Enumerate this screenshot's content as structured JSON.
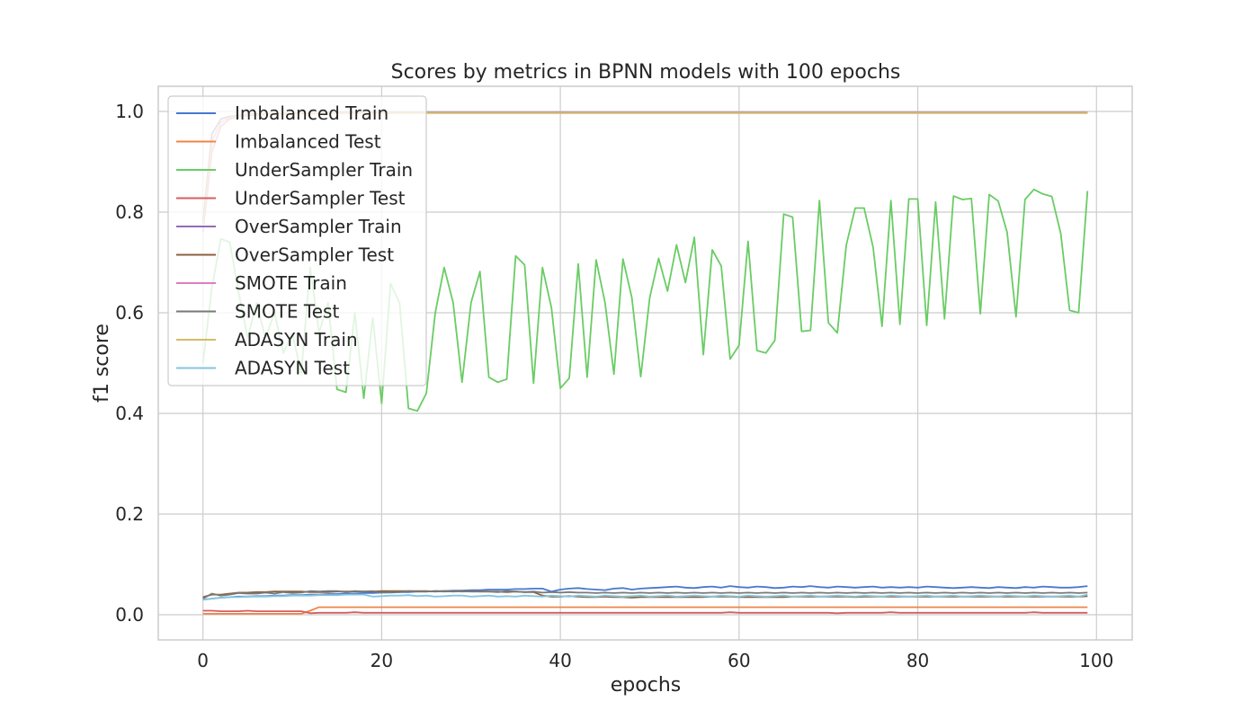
{
  "chart_data": {
    "type": "line",
    "title": "Scores by metrics in BPNN models with 100 epochs",
    "xlabel": "epochs",
    "ylabel": "f1 score",
    "xlim": [
      -5,
      104
    ],
    "ylim": [
      -0.05,
      1.05
    ],
    "x_ticks": [
      0,
      20,
      40,
      60,
      80,
      100
    ],
    "y_ticks": [
      0.0,
      0.2,
      0.4,
      0.6,
      0.8,
      1.0
    ],
    "x_tick_labels": [
      "0",
      "20",
      "40",
      "60",
      "80",
      "100"
    ],
    "y_tick_labels": [
      "0.0",
      "0.2",
      "0.4",
      "0.6",
      "0.8",
      "1.0"
    ],
    "grid": true,
    "legend_position": "upper-left",
    "series": [
      {
        "name": "Imbalanced Train",
        "color": "#4878d0",
        "values": [
          0.03,
          0.032,
          0.034,
          0.035,
          0.036,
          0.036,
          0.037,
          0.037,
          0.038,
          0.038,
          0.039,
          0.039,
          0.04,
          0.04,
          0.041,
          0.041,
          0.042,
          0.042,
          0.043,
          0.043,
          0.044,
          0.044,
          0.045,
          0.045,
          0.046,
          0.046,
          0.047,
          0.047,
          0.048,
          0.048,
          0.049,
          0.049,
          0.05,
          0.05,
          0.05,
          0.051,
          0.051,
          0.052,
          0.052,
          0.046,
          0.05,
          0.052,
          0.053,
          0.051,
          0.05,
          0.049,
          0.052,
          0.053,
          0.05,
          0.052,
          0.053,
          0.054,
          0.055,
          0.056,
          0.054,
          0.053,
          0.055,
          0.056,
          0.054,
          0.057,
          0.055,
          0.054,
          0.056,
          0.055,
          0.053,
          0.054,
          0.056,
          0.055,
          0.057,
          0.055,
          0.054,
          0.056,
          0.055,
          0.054,
          0.055,
          0.056,
          0.054,
          0.055,
          0.054,
          0.055,
          0.054,
          0.056,
          0.055,
          0.054,
          0.053,
          0.054,
          0.055,
          0.054,
          0.053,
          0.055,
          0.054,
          0.053,
          0.055,
          0.054,
          0.056,
          0.055,
          0.054,
          0.054,
          0.055,
          0.057
        ]
      },
      {
        "name": "Imbalanced Test",
        "color": "#ee854a",
        "values": [
          0.002,
          0.002,
          0.002,
          0.002,
          0.002,
          0.002,
          0.002,
          0.002,
          0.002,
          0.002,
          0.002,
          0.002,
          0.008,
          0.015,
          0.015,
          0.015,
          0.015,
          0.015,
          0.015,
          0.015,
          0.015,
          0.015,
          0.015,
          0.015,
          0.015,
          0.015,
          0.015,
          0.015,
          0.015,
          0.015,
          0.015,
          0.015,
          0.015,
          0.015,
          0.015,
          0.015,
          0.015,
          0.015,
          0.015,
          0.015,
          0.015,
          0.015,
          0.015,
          0.015,
          0.015,
          0.015,
          0.015,
          0.015,
          0.015,
          0.015,
          0.015,
          0.015,
          0.015,
          0.015,
          0.015,
          0.015,
          0.015,
          0.015,
          0.015,
          0.015,
          0.015,
          0.015,
          0.015,
          0.015,
          0.015,
          0.015,
          0.015,
          0.015,
          0.015,
          0.015,
          0.015,
          0.015,
          0.015,
          0.015,
          0.015,
          0.015,
          0.015,
          0.015,
          0.015,
          0.015,
          0.015,
          0.015,
          0.015,
          0.015,
          0.015,
          0.015,
          0.015,
          0.015,
          0.015,
          0.015,
          0.015,
          0.015,
          0.015,
          0.015,
          0.015,
          0.015,
          0.015,
          0.015,
          0.015,
          0.015
        ]
      },
      {
        "name": "UnderSampler Train",
        "color": "#6acc64",
        "values": [
          0.5,
          0.65,
          0.747,
          0.74,
          0.64,
          0.55,
          0.62,
          0.55,
          0.6,
          0.52,
          0.56,
          0.48,
          0.69,
          0.56,
          0.62,
          0.448,
          0.442,
          0.6,
          0.43,
          0.59,
          0.42,
          0.658,
          0.62,
          0.41,
          0.405,
          0.44,
          0.6,
          0.69,
          0.62,
          0.462,
          0.62,
          0.682,
          0.472,
          0.462,
          0.468,
          0.713,
          0.695,
          0.46,
          0.69,
          0.61,
          0.45,
          0.47,
          0.697,
          0.472,
          0.705,
          0.62,
          0.478,
          0.707,
          0.63,
          0.473,
          0.63,
          0.708,
          0.643,
          0.735,
          0.66,
          0.75,
          0.517,
          0.725,
          0.693,
          0.508,
          0.535,
          0.742,
          0.525,
          0.52,
          0.545,
          0.796,
          0.79,
          0.563,
          0.565,
          0.823,
          0.58,
          0.56,
          0.735,
          0.808,
          0.808,
          0.73,
          0.573,
          0.823,
          0.577,
          0.826,
          0.826,
          0.575,
          0.82,
          0.588,
          0.832,
          0.825,
          0.827,
          0.598,
          0.835,
          0.822,
          0.76,
          0.592,
          0.825,
          0.845,
          0.836,
          0.831,
          0.758,
          0.605,
          0.6,
          0.842
        ]
      },
      {
        "name": "UnderSampler Test",
        "color": "#d65f5f",
        "values": [
          0.008,
          0.008,
          0.007,
          0.007,
          0.007,
          0.008,
          0.007,
          0.007,
          0.007,
          0.007,
          0.007,
          0.007,
          0.003,
          0.004,
          0.004,
          0.004,
          0.004,
          0.005,
          0.004,
          0.004,
          0.004,
          0.004,
          0.004,
          0.004,
          0.004,
          0.004,
          0.004,
          0.004,
          0.004,
          0.004,
          0.004,
          0.004,
          0.004,
          0.004,
          0.004,
          0.004,
          0.004,
          0.004,
          0.004,
          0.004,
          0.004,
          0.004,
          0.004,
          0.004,
          0.004,
          0.004,
          0.004,
          0.004,
          0.004,
          0.004,
          0.004,
          0.004,
          0.004,
          0.004,
          0.004,
          0.004,
          0.004,
          0.004,
          0.004,
          0.005,
          0.004,
          0.004,
          0.004,
          0.004,
          0.004,
          0.004,
          0.004,
          0.004,
          0.004,
          0.004,
          0.004,
          0.003,
          0.004,
          0.004,
          0.004,
          0.004,
          0.004,
          0.005,
          0.004,
          0.004,
          0.004,
          0.004,
          0.004,
          0.004,
          0.004,
          0.004,
          0.004,
          0.004,
          0.004,
          0.004,
          0.004,
          0.004,
          0.004,
          0.005,
          0.004,
          0.004,
          0.004,
          0.004,
          0.004,
          0.004
        ]
      },
      {
        "name": "OverSampler Train",
        "color": "#956cb4",
        "values": [
          0.78,
          0.955,
          0.985,
          0.99,
          0.992,
          0.994,
          0.995,
          0.995,
          0.996,
          0.996,
          0.997,
          0.997,
          0.997,
          0.997,
          0.997,
          0.998,
          0.998,
          0.998,
          0.998,
          0.998,
          0.998,
          0.998,
          0.998,
          0.998,
          0.998,
          0.998,
          0.998,
          0.998,
          0.998,
          0.998,
          0.998,
          0.998,
          0.998,
          0.998,
          0.998,
          0.998,
          0.998,
          0.998,
          0.998,
          0.998,
          0.998,
          0.998,
          0.998,
          0.998,
          0.998,
          0.998,
          0.998,
          0.998,
          0.998,
          0.998,
          0.998,
          0.998,
          0.998,
          0.998,
          0.998,
          0.998,
          0.998,
          0.998,
          0.998,
          0.998,
          0.998,
          0.998,
          0.998,
          0.998,
          0.998,
          0.998,
          0.998,
          0.998,
          0.998,
          0.998,
          0.998,
          0.998,
          0.998,
          0.998,
          0.998,
          0.998,
          0.998,
          0.998,
          0.998,
          0.998,
          0.998,
          0.998,
          0.998,
          0.998,
          0.998,
          0.998,
          0.998,
          0.998,
          0.998,
          0.998,
          0.998,
          0.998,
          0.998,
          0.998,
          0.998,
          0.998,
          0.998,
          0.998,
          0.998,
          0.998
        ]
      },
      {
        "name": "OverSampler Test",
        "color": "#8c613c",
        "values": [
          0.035,
          0.04,
          0.04,
          0.042,
          0.044,
          0.044,
          0.045,
          0.045,
          0.046,
          0.046,
          0.046,
          0.046,
          0.045,
          0.045,
          0.045,
          0.046,
          0.046,
          0.046,
          0.046,
          0.046,
          0.047,
          0.047,
          0.047,
          0.047,
          0.047,
          0.047,
          0.046,
          0.047,
          0.046,
          0.047,
          0.046,
          0.046,
          0.046,
          0.046,
          0.045,
          0.046,
          0.045,
          0.045,
          0.038,
          0.036,
          0.036,
          0.037,
          0.036,
          0.035,
          0.035,
          0.036,
          0.035,
          0.035,
          0.034,
          0.035,
          0.035,
          0.035,
          0.035,
          0.035,
          0.035,
          0.035,
          0.035,
          0.036,
          0.036,
          0.036,
          0.035,
          0.035,
          0.035,
          0.035,
          0.035,
          0.035,
          0.036,
          0.036,
          0.036,
          0.036,
          0.036,
          0.036,
          0.036,
          0.035,
          0.036,
          0.036,
          0.036,
          0.036,
          0.036,
          0.036,
          0.036,
          0.036,
          0.036,
          0.036,
          0.036,
          0.036,
          0.036,
          0.036,
          0.036,
          0.036,
          0.036,
          0.036,
          0.036,
          0.036,
          0.036,
          0.036,
          0.036,
          0.036,
          0.036,
          0.037
        ]
      },
      {
        "name": "SMOTE Train",
        "color": "#dc7ec0",
        "values": [
          0.76,
          0.92,
          0.97,
          0.985,
          0.99,
          0.992,
          0.993,
          0.994,
          0.995,
          0.995,
          0.996,
          0.996,
          0.996,
          0.996,
          0.997,
          0.997,
          0.997,
          0.997,
          0.997,
          0.997,
          0.997,
          0.997,
          0.997,
          0.997,
          0.997,
          0.997,
          0.997,
          0.997,
          0.997,
          0.997,
          0.997,
          0.997,
          0.997,
          0.997,
          0.997,
          0.997,
          0.997,
          0.997,
          0.997,
          0.997,
          0.997,
          0.997,
          0.997,
          0.997,
          0.997,
          0.997,
          0.997,
          0.997,
          0.997,
          0.997,
          0.997,
          0.997,
          0.997,
          0.997,
          0.997,
          0.997,
          0.997,
          0.997,
          0.997,
          0.997,
          0.997,
          0.997,
          0.997,
          0.997,
          0.997,
          0.997,
          0.997,
          0.997,
          0.997,
          0.997,
          0.997,
          0.997,
          0.997,
          0.997,
          0.997,
          0.997,
          0.997,
          0.997,
          0.997,
          0.997,
          0.997,
          0.997,
          0.997,
          0.997,
          0.997,
          0.997,
          0.997,
          0.997,
          0.997,
          0.997,
          0.997,
          0.997,
          0.997,
          0.997,
          0.997,
          0.997,
          0.997,
          0.997,
          0.997,
          0.997
        ]
      },
      {
        "name": "SMOTE Test",
        "color": "#797979",
        "values": [
          0.032,
          0.042,
          0.038,
          0.04,
          0.043,
          0.042,
          0.042,
          0.044,
          0.042,
          0.045,
          0.043,
          0.044,
          0.047,
          0.046,
          0.047,
          0.047,
          0.045,
          0.047,
          0.046,
          0.047,
          0.044,
          0.045,
          0.045,
          0.047,
          0.046,
          0.046,
          0.047,
          0.046,
          0.047,
          0.046,
          0.047,
          0.046,
          0.046,
          0.045,
          0.047,
          0.046,
          0.045,
          0.046,
          0.044,
          0.045,
          0.044,
          0.045,
          0.044,
          0.044,
          0.043,
          0.044,
          0.043,
          0.044,
          0.043,
          0.044,
          0.043,
          0.044,
          0.043,
          0.044,
          0.043,
          0.044,
          0.043,
          0.044,
          0.043,
          0.044,
          0.043,
          0.044,
          0.043,
          0.044,
          0.043,
          0.044,
          0.043,
          0.044,
          0.043,
          0.044,
          0.043,
          0.044,
          0.043,
          0.044,
          0.043,
          0.044,
          0.043,
          0.044,
          0.043,
          0.044,
          0.043,
          0.044,
          0.043,
          0.044,
          0.043,
          0.044,
          0.043,
          0.044,
          0.043,
          0.044,
          0.043,
          0.044,
          0.043,
          0.044,
          0.043,
          0.044,
          0.043,
          0.044,
          0.043,
          0.044
        ]
      },
      {
        "name": "ADASYN Train",
        "color": "#d5bb67",
        "values": [
          0.77,
          0.94,
          0.978,
          0.988,
          0.991,
          0.993,
          0.994,
          0.995,
          0.995,
          0.996,
          0.996,
          0.996,
          0.997,
          0.997,
          0.997,
          0.997,
          0.997,
          0.997,
          0.997,
          0.997,
          0.997,
          0.997,
          0.997,
          0.997,
          0.997,
          0.997,
          0.997,
          0.997,
          0.997,
          0.997,
          0.997,
          0.997,
          0.997,
          0.997,
          0.997,
          0.997,
          0.997,
          0.997,
          0.997,
          0.997,
          0.997,
          0.997,
          0.997,
          0.997,
          0.997,
          0.997,
          0.997,
          0.997,
          0.997,
          0.997,
          0.997,
          0.997,
          0.997,
          0.997,
          0.997,
          0.997,
          0.997,
          0.997,
          0.997,
          0.997,
          0.997,
          0.997,
          0.997,
          0.997,
          0.997,
          0.997,
          0.997,
          0.997,
          0.997,
          0.997,
          0.997,
          0.997,
          0.997,
          0.997,
          0.997,
          0.997,
          0.997,
          0.997,
          0.997,
          0.997,
          0.997,
          0.997,
          0.997,
          0.997,
          0.997,
          0.997,
          0.997,
          0.997,
          0.997,
          0.997,
          0.997,
          0.997,
          0.997,
          0.997,
          0.997,
          0.997,
          0.997,
          0.997,
          0.997,
          0.997
        ]
      },
      {
        "name": "ADASYN Test",
        "color": "#82c6e2",
        "values": [
          0.03,
          0.032,
          0.034,
          0.035,
          0.035,
          0.036,
          0.036,
          0.036,
          0.037,
          0.037,
          0.038,
          0.038,
          0.038,
          0.039,
          0.039,
          0.039,
          0.04,
          0.04,
          0.04,
          0.036,
          0.037,
          0.038,
          0.038,
          0.039,
          0.037,
          0.038,
          0.036,
          0.037,
          0.038,
          0.038,
          0.036,
          0.037,
          0.038,
          0.036,
          0.037,
          0.036,
          0.038,
          0.037,
          0.036,
          0.038,
          0.037,
          0.036,
          0.038,
          0.037,
          0.036,
          0.038,
          0.037,
          0.036,
          0.037,
          0.038,
          0.036,
          0.037,
          0.038,
          0.036,
          0.037,
          0.038,
          0.037,
          0.036,
          0.038,
          0.037,
          0.036,
          0.038,
          0.037,
          0.036,
          0.037,
          0.038,
          0.036,
          0.037,
          0.038,
          0.036,
          0.037,
          0.038,
          0.037,
          0.036,
          0.038,
          0.037,
          0.036,
          0.038,
          0.037,
          0.036,
          0.037,
          0.038,
          0.036,
          0.037,
          0.038,
          0.036,
          0.037,
          0.038,
          0.037,
          0.036,
          0.038,
          0.037,
          0.036,
          0.038,
          0.037,
          0.036,
          0.037,
          0.038,
          0.036,
          0.04
        ]
      }
    ]
  }
}
